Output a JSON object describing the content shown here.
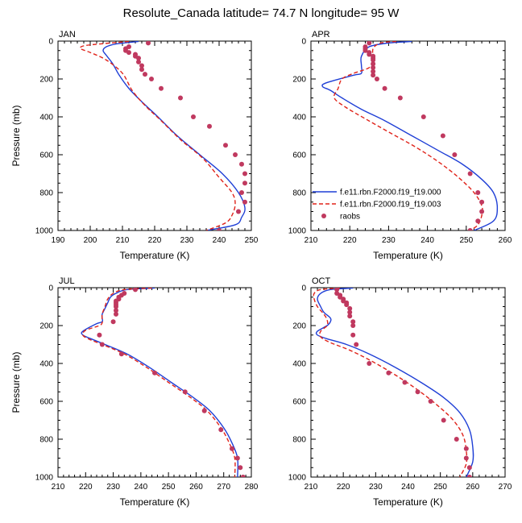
{
  "figure": {
    "title": "Resolute_Canada  latitude= 74.7 N longitude= 95 W"
  },
  "chart_data": [
    {
      "type": "line",
      "panel": "JAN",
      "xlabel": "Temperature (K)",
      "ylabel": "Pressure (mb)",
      "xlim": [
        190,
        250
      ],
      "ylim": [
        1000,
        0
      ],
      "xticks": [
        "190",
        "200",
        "210",
        "220",
        "230",
        "240",
        "250"
      ],
      "yticks": [
        "0",
        "200",
        "400",
        "600",
        "800",
        "1000"
      ],
      "series": [
        {
          "name": "f.e11.rbn.F2000.f19_f19.000",
          "color": "#1f3fd6",
          "dash": "solid",
          "x": [
            215,
            208,
            205,
            204,
            205,
            207,
            209,
            212,
            216,
            221,
            227,
            234,
            241,
            246,
            248,
            247,
            245,
            236
          ],
          "y": [
            2,
            15,
            30,
            50,
            75,
            120,
            180,
            250,
            320,
            400,
            500,
            600,
            700,
            800,
            880,
            930,
            970,
            1000
          ]
        },
        {
          "name": "f.e11.rbn.F2000.f19_f19.003",
          "color": "#e0231a",
          "dash": "dashed",
          "x": [
            212,
            203,
            198,
            197,
            200,
            205,
            210,
            213,
            217,
            222,
            228,
            235,
            240,
            244,
            245,
            244,
            242,
            236
          ],
          "y": [
            2,
            15,
            25,
            40,
            60,
            100,
            170,
            260,
            340,
            420,
            520,
            620,
            720,
            800,
            860,
            920,
            960,
            1000
          ]
        },
        {
          "name": "raobs",
          "color": "#c0395f",
          "marker": "dot",
          "x": [
            218,
            212,
            211,
            211,
            212,
            214,
            214,
            215,
            215,
            216,
            216,
            217,
            219,
            222,
            228,
            232,
            237,
            242,
            245,
            247,
            248,
            248,
            247,
            248,
            246,
            240
          ],
          "y": [
            10,
            30,
            40,
            50,
            60,
            70,
            80,
            90,
            110,
            130,
            150,
            175,
            200,
            250,
            300,
            400,
            450,
            550,
            600,
            650,
            700,
            750,
            800,
            850,
            900,
            1000
          ]
        }
      ]
    },
    {
      "type": "line",
      "panel": "APR",
      "xlabel": "Temperature (K)",
      "ylabel": "",
      "xlim": [
        210,
        260
      ],
      "ylim": [
        1000,
        0
      ],
      "xticks": [
        "210",
        "220",
        "230",
        "240",
        "250",
        "260"
      ],
      "yticks": [
        "0",
        "200",
        "400",
        "600",
        "800",
        "1000"
      ],
      "series": [
        {
          "name": "f.e11.rbn.F2000.f19_f19.000",
          "color": "#1f3fd6",
          "dash": "solid",
          "x": [
            236,
            230,
            225,
            223,
            223,
            223,
            221,
            214,
            213,
            215,
            218,
            223,
            229,
            236,
            243,
            249,
            254,
            257,
            258,
            257,
            252
          ],
          "y": [
            2,
            10,
            30,
            80,
            130,
            170,
            180,
            220,
            240,
            260,
            300,
            360,
            420,
            500,
            580,
            650,
            730,
            800,
            880,
            950,
            1000
          ]
        },
        {
          "name": "f.e11.rbn.F2000.f19_f19.003",
          "color": "#e0231a",
          "dash": "dashed",
          "x": [
            232,
            228,
            226,
            226,
            225,
            221,
            218,
            217,
            216,
            219,
            224,
            230,
            237,
            243,
            248,
            252,
            254,
            254,
            253,
            251
          ],
          "y": [
            2,
            10,
            40,
            100,
            140,
            170,
            200,
            250,
            300,
            350,
            410,
            480,
            560,
            640,
            720,
            800,
            870,
            920,
            970,
            1000
          ]
        },
        {
          "name": "raobs",
          "color": "#c0395f",
          "marker": "dot",
          "x": [
            225,
            224,
            224,
            224,
            225,
            225,
            226,
            226,
            226,
            226,
            226,
            226,
            226,
            227,
            229,
            233,
            239,
            244,
            247,
            251,
            253,
            254,
            254,
            253,
            251
          ],
          "y": [
            10,
            30,
            40,
            50,
            60,
            70,
            80,
            90,
            100,
            120,
            140,
            160,
            180,
            200,
            250,
            300,
            400,
            500,
            600,
            700,
            800,
            850,
            900,
            950,
            1000
          ]
        }
      ]
    },
    {
      "type": "line",
      "panel": "JUL",
      "xlabel": "Temperature (K)",
      "ylabel": "Pressure (mb)",
      "xlim": [
        210,
        280
      ],
      "ylim": [
        1000,
        0
      ],
      "xticks": [
        "210",
        "220",
        "230",
        "240",
        "250",
        "260",
        "270",
        "280"
      ],
      "yticks": [
        "0",
        "200",
        "400",
        "600",
        "800",
        "1000"
      ],
      "series": [
        {
          "name": "f.e11.rbn.F2000.f19_f19.000",
          "color": "#1f3fd6",
          "dash": "solid",
          "x": [
            245,
            235,
            231,
            229,
            228,
            227,
            226,
            226,
            226,
            224,
            219,
            219,
            222,
            227,
            235,
            243,
            251,
            259,
            265,
            270,
            273,
            275,
            275
          ],
          "y": [
            2,
            10,
            30,
            50,
            80,
            110,
            140,
            160,
            180,
            190,
            230,
            250,
            270,
            300,
            350,
            420,
            500,
            580,
            650,
            740,
            820,
            900,
            1000
          ]
        },
        {
          "name": "f.e11.rbn.F2000.f19_f19.003",
          "color": "#e0231a",
          "dash": "dashed",
          "x": [
            244,
            234,
            230,
            228,
            227,
            226,
            226,
            226,
            225,
            220,
            219,
            221,
            226,
            234,
            242,
            250,
            258,
            264,
            269,
            272,
            274,
            274
          ],
          "y": [
            2,
            10,
            30,
            60,
            100,
            140,
            170,
            185,
            200,
            225,
            250,
            270,
            300,
            350,
            420,
            500,
            580,
            650,
            740,
            820,
            900,
            1000
          ]
        },
        {
          "name": "raobs",
          "color": "#c0395f",
          "marker": "dot",
          "x": [
            238,
            234,
            233,
            232,
            232,
            231,
            231,
            231,
            231,
            231,
            231,
            230,
            225,
            226,
            233,
            245,
            256,
            263,
            269,
            273,
            275,
            276,
            277
          ],
          "y": [
            10,
            30,
            40,
            50,
            60,
            70,
            80,
            90,
            100,
            120,
            140,
            180,
            250,
            300,
            350,
            450,
            550,
            650,
            750,
            850,
            900,
            950,
            1000
          ]
        }
      ]
    },
    {
      "type": "line",
      "panel": "OCT",
      "xlabel": "Temperature (K)",
      "ylabel": "",
      "xlim": [
        210,
        270
      ],
      "ylim": [
        1000,
        0
      ],
      "xticks": [
        "210",
        "220",
        "230",
        "240",
        "250",
        "260",
        "270"
      ],
      "yticks": [
        "0",
        "200",
        "400",
        "600",
        "800",
        "1000"
      ],
      "series": [
        {
          "name": "f.e11.rbn.F2000.f19_f19.000",
          "color": "#1f3fd6",
          "dash": "solid",
          "x": [
            223,
            216,
            213,
            212,
            213,
            214,
            216,
            216,
            215,
            212,
            212,
            215,
            221,
            228,
            236,
            244,
            251,
            256,
            259,
            260,
            260,
            258
          ],
          "y": [
            2,
            10,
            30,
            60,
            100,
            130,
            160,
            180,
            200,
            230,
            250,
            270,
            300,
            350,
            420,
            500,
            580,
            660,
            750,
            840,
            920,
            1000
          ]
        },
        {
          "name": "f.e11.rbn.F2000.f19_f19.003",
          "color": "#e0231a",
          "dash": "dashed",
          "x": [
            219,
            213,
            211,
            211,
            212,
            214,
            215,
            215,
            213,
            213,
            216,
            222,
            229,
            236,
            243,
            249,
            254,
            257,
            258,
            258,
            256
          ],
          "y": [
            2,
            10,
            30,
            60,
            100,
            140,
            170,
            200,
            230,
            260,
            290,
            330,
            390,
            460,
            540,
            620,
            700,
            780,
            860,
            930,
            1000
          ]
        },
        {
          "name": "raobs",
          "color": "#c0395f",
          "marker": "dot",
          "x": [
            218,
            218,
            219,
            219,
            220,
            220,
            221,
            221,
            222,
            222,
            222,
            223,
            223,
            223,
            224,
            228,
            234,
            239,
            243,
            247,
            251,
            255,
            258,
            258,
            259,
            259
          ],
          "y": [
            10,
            30,
            40,
            50,
            60,
            70,
            80,
            90,
            110,
            130,
            150,
            180,
            200,
            250,
            300,
            400,
            450,
            500,
            550,
            600,
            700,
            800,
            850,
            900,
            950,
            1000
          ]
        }
      ]
    }
  ]
}
